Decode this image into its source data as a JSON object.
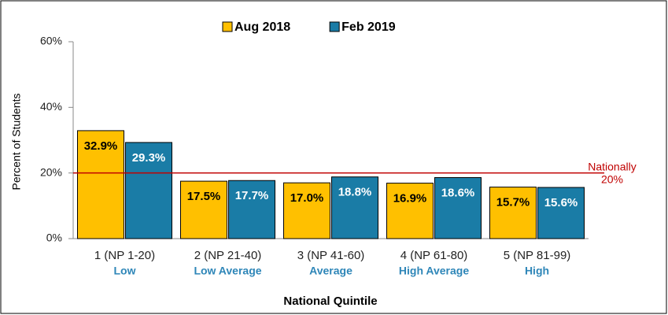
{
  "chart_data": {
    "type": "bar",
    "x_label": "National Quintile",
    "y_label": "Percent of Students",
    "categories": [
      "1 (NP 1-20)",
      "2 (NP 21-40)",
      "3 (NP 41-60)",
      "4 (NP 61-80)",
      "5 (NP 81-99)"
    ],
    "category_sublabels": [
      "Low",
      "Low Average",
      "Average",
      "High Average",
      "High"
    ],
    "series": [
      {
        "name": "Aug 2018",
        "color": "#ffc000",
        "values": [
          32.9,
          17.5,
          17.0,
          16.9,
          15.7
        ],
        "value_labels": [
          "32.9%",
          "17.5%",
          "17.0%",
          "16.9%",
          "15.7%"
        ]
      },
      {
        "name": "Feb 2019",
        "color": "#1a7ca6",
        "values": [
          29.3,
          17.7,
          18.8,
          18.6,
          15.6
        ],
        "value_labels": [
          "29.3%",
          "17.7%",
          "18.8%",
          "18.6%",
          "15.6%"
        ]
      }
    ],
    "ylim": [
      0,
      60
    ],
    "yticks": [
      {
        "value": 0,
        "label": "0%"
      },
      {
        "value": 20,
        "label": "20%"
      },
      {
        "value": 40,
        "label": "40%"
      },
      {
        "value": 60,
        "label": "60%"
      }
    ],
    "reference_line": {
      "value": 20,
      "label_lines": [
        "Nationally",
        "20%"
      ],
      "color": "#c00000"
    },
    "legend": "top"
  }
}
